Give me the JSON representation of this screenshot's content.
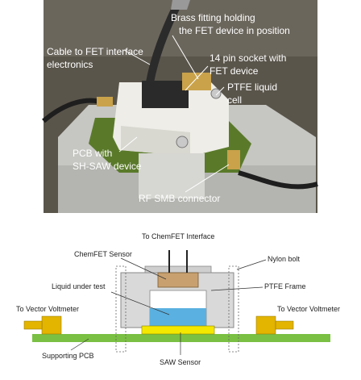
{
  "photo": {
    "labels": {
      "brass_fitting": [
        "Brass fitting holding",
        "the FET device in position"
      ],
      "cable": [
        "Cable to FET interface",
        "electronics"
      ],
      "socket": [
        "14 pin socket with",
        "FET device"
      ],
      "ptfe_cell": [
        "PTFE liquid",
        "cell"
      ],
      "pcb": [
        "PCB with",
        "SH-SAW device"
      ],
      "rf_smb": [
        "RF SMB connector"
      ]
    },
    "colors": {
      "background": "#555046",
      "aluminium": "#c8c8c4",
      "ptfe": "#efeee8",
      "pcb": "#5a7a2a",
      "brass": "#c9a24a",
      "label_text": "#ffffff"
    }
  },
  "diagram": {
    "labels": {
      "chemfet_interface": "To ChemFET Interface",
      "chemfet_sensor": "ChemFET Sensor",
      "nylon_bolt": "Nylon bolt",
      "ptfe_frame": "PTFE Frame",
      "liquid": "Liquid under test",
      "vv_left": "To Vector Voltmeter",
      "vv_right": "To Vector Voltmeter",
      "pcb": "Supporting PCB",
      "saw": "SAW Sensor"
    },
    "colors": {
      "frame": "#d9d9d9",
      "sensor": "#c8a070",
      "liquid": "#5ab0e0",
      "pcb": "#7ac043",
      "saw": "#f5e800",
      "connector": "#e3b400"
    }
  }
}
